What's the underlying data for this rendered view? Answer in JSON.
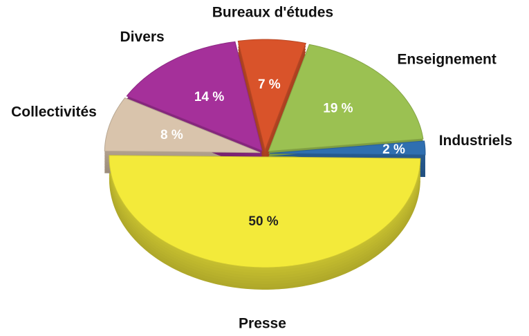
{
  "chart_data": {
    "type": "pie",
    "categories": [
      "Bureaux d'études",
      "Enseignement",
      "Industriels",
      "Presse",
      "Collectivités",
      "Divers"
    ],
    "values": [
      7,
      19,
      2,
      50,
      8,
      14
    ],
    "value_labels": [
      "7 %",
      "19 %",
      "2 %",
      "50 %",
      "8 %",
      "14 %"
    ],
    "colors": [
      "#d9532a",
      "#9bc152",
      "#2f6fb0",
      "#f3ea3a",
      "#d9c4ac",
      "#a5309a"
    ]
  }
}
